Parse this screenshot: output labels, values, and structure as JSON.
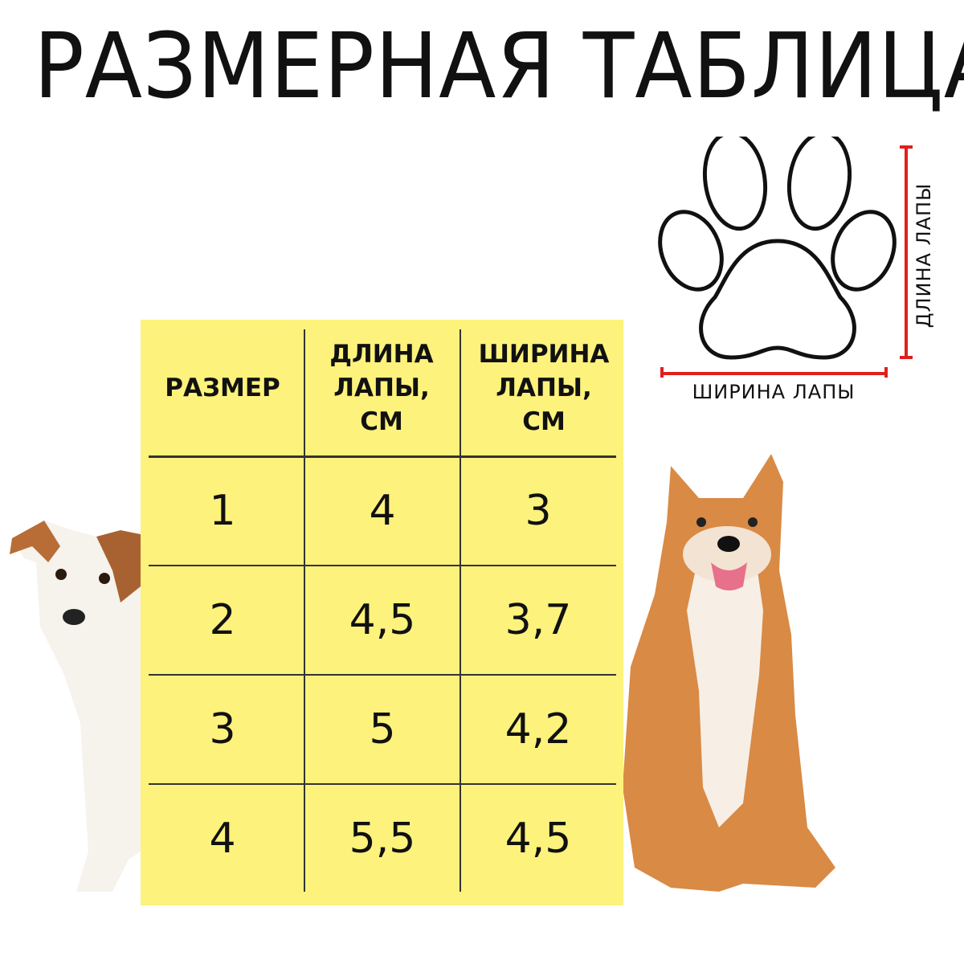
{
  "title": "РАЗМЕРНАЯ ТАБЛИЦА",
  "diagram": {
    "length_label": "ДЛИНА ЛАПЫ",
    "width_label": "ШИРИНА ЛАПЫ",
    "measure_color": "#e0201c",
    "icon": "paw-outline-icon"
  },
  "table": {
    "background": "#fdf27c",
    "headers": [
      "РАЗМЕР",
      "ДЛИНА ЛАПЫ, СМ",
      "ШИРИНА ЛАПЫ, СМ"
    ],
    "rows": [
      [
        "1",
        "4",
        "3"
      ],
      [
        "2",
        "4,5",
        "3,7"
      ],
      [
        "3",
        "5",
        "4,2"
      ],
      [
        "4",
        "5,5",
        "4,5"
      ]
    ]
  }
}
